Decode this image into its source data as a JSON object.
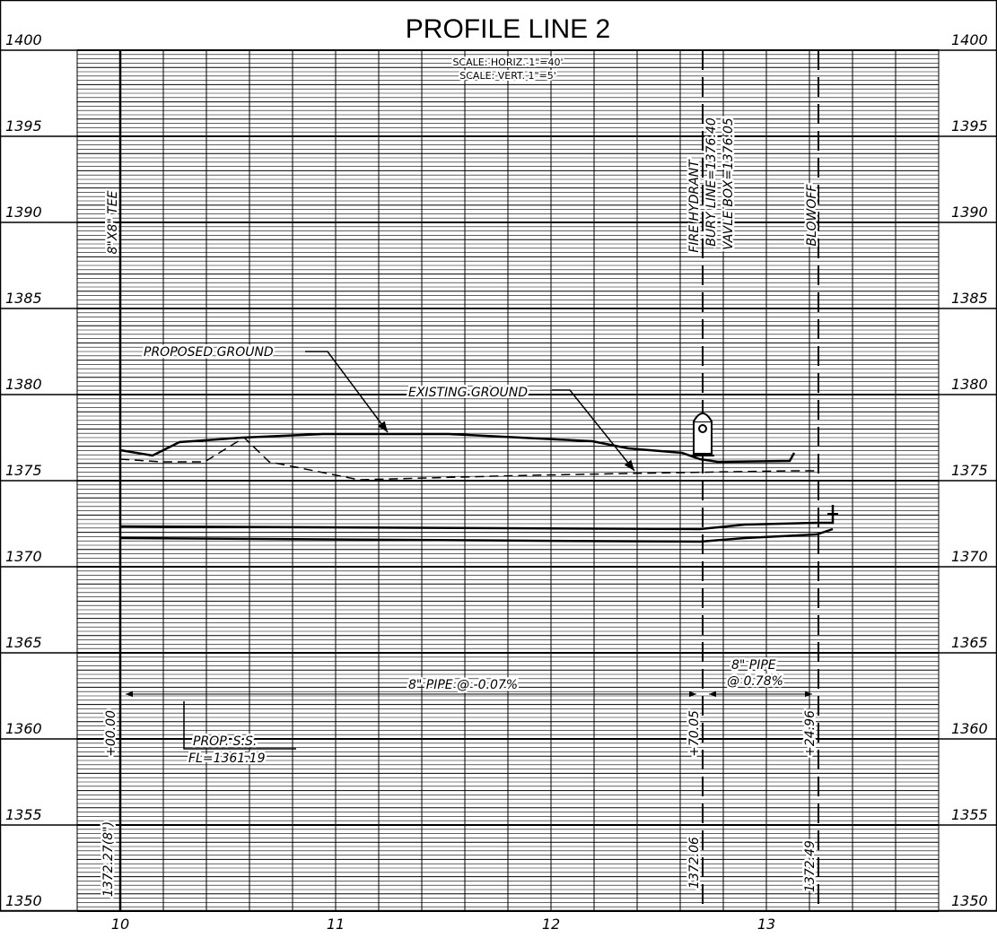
{
  "title": "PROFILE LINE 2",
  "scale_notes": [
    "SCALE: HORIZ. 1\"=40'",
    "SCALE: VERT. 1\"=5'"
  ],
  "elevation_labels": [
    "1400",
    "1395",
    "1390",
    "1385",
    "1380",
    "1375",
    "1370",
    "1365",
    "1360",
    "1355",
    "1350"
  ],
  "station_labels": [
    "10",
    "11",
    "12",
    "13"
  ],
  "annotations": {
    "tee": "8\"X8\" TEE",
    "fire_hydrant": "FIRE HYDRANT",
    "bury_line": "BURY LINE=1376.40",
    "valve_box": "VAVLE BOX=1376.05",
    "blowoff": "BLOWOFF",
    "proposed_ground": "PROPOSED GROUND",
    "existing_ground": "EXISTING GROUND",
    "pipe_main": "8\" PIPE @ -0.07%",
    "pipe_short_1": "8\" PIPE",
    "pipe_short_2": "@ 0.78%",
    "sta_start": "+00.00",
    "sta_hydrant": "+70.05",
    "sta_blowoff": "+24.96",
    "prop_ss": "PROP. S.S.",
    "prop_ss_fl": "FL=1361.19",
    "inv_start": "1372.27(8\")",
    "inv_hydrant": "1372.06",
    "inv_blowoff": "1372.49"
  }
}
